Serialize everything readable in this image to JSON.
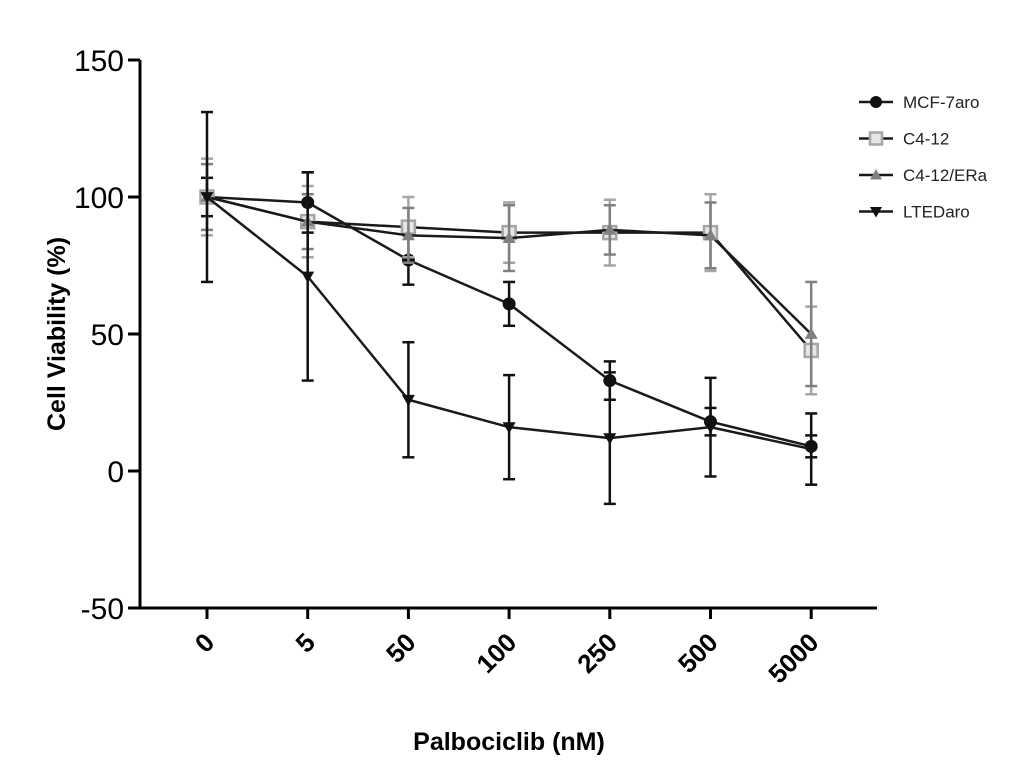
{
  "chart_data": {
    "type": "line",
    "title": "",
    "xlabel": "Palbociclib (nM)",
    "ylabel": "Cell Viability (%)",
    "ylim": [
      -50,
      150
    ],
    "yticks": [
      "150",
      "100",
      "50",
      "0",
      "-50"
    ],
    "categories": [
      "0",
      "5",
      "50",
      "100",
      "250",
      "500",
      "5000"
    ],
    "grid": false,
    "legend_position": "top-right",
    "series": [
      {
        "name": "MCF-7aro",
        "marker": "circle",
        "color": "#111111",
        "values": [
          100,
          98,
          77,
          61,
          33,
          18,
          9
        ],
        "errors": [
          7,
          11,
          9,
          8,
          7,
          5,
          4
        ]
      },
      {
        "name": "C4-12",
        "marker": "square",
        "color": "#a6a6a6",
        "values": [
          100,
          91,
          89,
          87,
          87,
          87,
          44
        ],
        "errors": [
          14,
          13,
          11,
          11,
          12,
          14,
          16
        ]
      },
      {
        "name": "C4-12/ERa",
        "marker": "triangle-up",
        "color": "#808080",
        "values": [
          100,
          91,
          86,
          85,
          88,
          86,
          50
        ],
        "errors": [
          12,
          10,
          10,
          12,
          9,
          12,
          19
        ]
      },
      {
        "name": "LTEDaro",
        "marker": "triangle-down",
        "color": "#111111",
        "values": [
          100,
          71,
          26,
          16,
          12,
          16,
          8
        ],
        "errors": [
          31,
          38,
          21,
          19,
          24,
          18,
          13
        ]
      }
    ]
  }
}
